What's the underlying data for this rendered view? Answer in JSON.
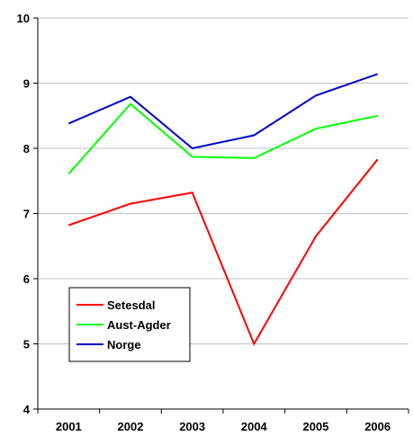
{
  "chart_data": {
    "type": "line",
    "categories": [
      "2001",
      "2002",
      "2003",
      "2004",
      "2005",
      "2006"
    ],
    "ylim": [
      4,
      10
    ],
    "yticks": [
      "4",
      "5",
      "6",
      "7",
      "8",
      "9",
      "10"
    ],
    "grid": true,
    "legend_position": "bottom-left",
    "series": [
      {
        "name": "Setesdal",
        "color": "#ff0000",
        "values": [
          6.82,
          7.15,
          7.32,
          5.0,
          6.65,
          7.83
        ]
      },
      {
        "name": "Aust-Agder",
        "color": "#00ff00",
        "values": [
          7.61,
          8.68,
          7.87,
          7.85,
          8.3,
          8.5
        ]
      },
      {
        "name": "Norge",
        "color": "#0000cc",
        "values": [
          8.38,
          8.79,
          8.0,
          8.2,
          8.81,
          9.14
        ]
      }
    ]
  }
}
